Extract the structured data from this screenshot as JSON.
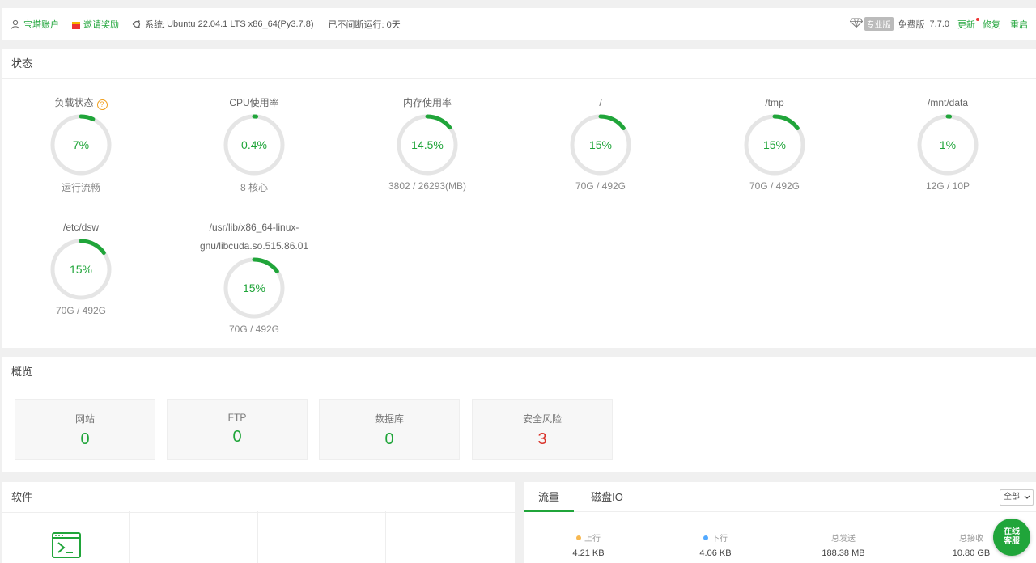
{
  "topbar": {
    "account": "宝塔账户",
    "invite": "邀请奖励",
    "system_prefix": "系统:",
    "system": "Ubuntu 22.04.1 LTS x86_64(Py3.7.8)",
    "uptime": "已不间断运行: 0天",
    "pro_badge": "专业版",
    "edition": "免费版",
    "version": "7.7.0",
    "update": "更新",
    "repair": "修复",
    "restart": "重启"
  },
  "status": {
    "title": "状态",
    "gauges": [
      {
        "label": "负载状态",
        "value": "7%",
        "percent": 7,
        "sub": "运行流畅"
      },
      {
        "label": "CPU使用率",
        "value": "0.4%",
        "percent": 0.4,
        "sub": "8 核心"
      },
      {
        "label": "内存使用率",
        "value": "14.5%",
        "percent": 14.5,
        "sub": "3802 / 26293(MB)"
      },
      {
        "label": "/",
        "value": "15%",
        "percent": 15,
        "sub": "70G / 492G"
      },
      {
        "label": "/tmp",
        "value": "15%",
        "percent": 15,
        "sub": "70G / 492G"
      },
      {
        "label": "/mnt/data",
        "value": "1%",
        "percent": 1,
        "sub": "12G / 10P"
      },
      {
        "label": "/etc/dsw",
        "value": "15%",
        "percent": 15,
        "sub": "70G / 492G"
      },
      {
        "label_line1": "/usr/lib/x86_64-linux-",
        "label_line2": "gnu/libcuda.so.515.86.01",
        "value": "15%",
        "percent": 15,
        "sub": "70G / 492G"
      }
    ]
  },
  "overview": {
    "title": "概览",
    "cards": [
      {
        "label": "网站",
        "value": "0"
      },
      {
        "label": "FTP",
        "value": "0"
      },
      {
        "label": "数据库",
        "value": "0"
      },
      {
        "label": "安全风险",
        "value": "3"
      }
    ]
  },
  "software": {
    "title": "软件"
  },
  "traffic": {
    "tabs": [
      "流量",
      "磁盘IO"
    ],
    "select": "全部",
    "stats": [
      {
        "label": "上行",
        "value": "4.21 KB",
        "dot": "#f7b851"
      },
      {
        "label": "下行",
        "value": "4.06 KB",
        "dot": "#52a9ff"
      },
      {
        "label": "总发送",
        "value": "188.38 MB"
      },
      {
        "label": "总接收",
        "value": "10.80 GB"
      }
    ]
  },
  "chat": {
    "line1": "在线",
    "line2": "客服"
  },
  "colors": {
    "accent": "#20a53a",
    "danger": "#d9342b",
    "track": "#e5e5e5"
  }
}
